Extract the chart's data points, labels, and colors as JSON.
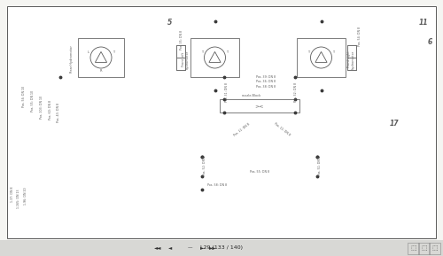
{
  "page_bg": "#f5f5f2",
  "diagram_bg": "#ffffff",
  "nav_bg": "#d8d8d5",
  "line_color": "#5a5a5a",
  "dashed_color": "#7a7a7a",
  "dot_color": "#3a3a3a",
  "page_nav_text": "L29 (133 / 140)",
  "nav_bar_height": 18,
  "labels": {
    "rear_motor": "Rear Hydromotor",
    "front_left": "Front left\nhydromotor",
    "front_right": "Front right\nhydromotor",
    "nozzle_block": "nozzle-Block",
    "id_11": "11",
    "id_5": "5",
    "id_6": "6",
    "id_17": "17",
    "L": "L",
    "T1": "T",
    "R": "R"
  },
  "pipe_labels": {
    "pos56": "Pos. 56: DN 10",
    "pos55_dn10": "Pos. 55: DN 10",
    "pos103": "Pos. 103: DN 10",
    "pos60": "Pos. 60: DN 8",
    "pos43": "Pos. 43: DN 8",
    "p137": "1.37: DN 8",
    "p1165": "1.165: DN 13",
    "p196": "1.96: DN 10",
    "pos35": "Pos. 35: DN 8",
    "pos54": "Pos. 54: DN 8",
    "pos39": "Pos. 39: DN 8",
    "pos38": "Pos. 38: DN 8",
    "pos36": "Pos. 36: DN 8",
    "pos32": "Pos. 32: DN 8",
    "pos31": "Pos. 31: DN 8",
    "pos11": "Pos. 11: DN 8",
    "pos12": "Pos. 12: DN 8",
    "pos52": "Pos. 52: DN 8",
    "pos51": "Pos. 51: DN 8",
    "pos55_dn8": "Pos. 55: DN 8",
    "pos58": "Pos. 58: DN 8"
  }
}
